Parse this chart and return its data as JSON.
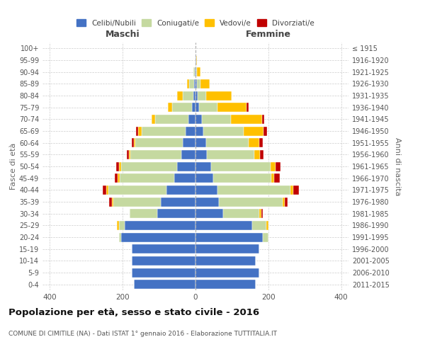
{
  "age_groups": [
    "0-4",
    "5-9",
    "10-14",
    "15-19",
    "20-24",
    "25-29",
    "30-34",
    "35-39",
    "40-44",
    "45-49",
    "50-54",
    "55-59",
    "60-64",
    "65-69",
    "70-74",
    "75-79",
    "80-84",
    "85-89",
    "90-94",
    "95-99",
    "100+"
  ],
  "birth_years": [
    "2011-2015",
    "2006-2010",
    "2001-2005",
    "1996-2000",
    "1991-1995",
    "1986-1990",
    "1981-1985",
    "1976-1980",
    "1971-1975",
    "1966-1970",
    "1961-1965",
    "1956-1960",
    "1951-1955",
    "1946-1950",
    "1941-1945",
    "1936-1940",
    "1931-1935",
    "1926-1930",
    "1921-1925",
    "1916-1920",
    "≤ 1915"
  ],
  "male": {
    "celibi": [
      170,
      175,
      175,
      175,
      205,
      195,
      105,
      95,
      80,
      58,
      50,
      38,
      35,
      28,
      20,
      10,
      5,
      3,
      2,
      0,
      0
    ],
    "coniugati": [
      0,
      0,
      0,
      0,
      5,
      15,
      75,
      130,
      160,
      150,
      155,
      140,
      130,
      120,
      90,
      55,
      30,
      15,
      4,
      0,
      0
    ],
    "vedovi": [
      0,
      0,
      0,
      0,
      0,
      5,
      0,
      5,
      5,
      5,
      5,
      5,
      5,
      10,
      10,
      10,
      15,
      5,
      0,
      0,
      0
    ],
    "divorziati": [
      0,
      0,
      0,
      0,
      0,
      0,
      0,
      8,
      10,
      8,
      8,
      5,
      5,
      5,
      0,
      0,
      0,
      0,
      0,
      0,
      0
    ]
  },
  "female": {
    "nubili": [
      165,
      175,
      165,
      175,
      185,
      155,
      75,
      65,
      60,
      48,
      42,
      32,
      30,
      22,
      18,
      10,
      5,
      3,
      2,
      1,
      0
    ],
    "coniugate": [
      0,
      0,
      0,
      0,
      15,
      40,
      100,
      175,
      200,
      160,
      165,
      130,
      115,
      110,
      80,
      50,
      25,
      10,
      2,
      0,
      0
    ],
    "vedove": [
      0,
      0,
      0,
      0,
      0,
      5,
      5,
      5,
      8,
      8,
      12,
      15,
      30,
      55,
      85,
      80,
      70,
      25,
      10,
      2,
      0
    ],
    "divorziate": [
      0,
      0,
      0,
      0,
      0,
      0,
      5,
      8,
      15,
      15,
      15,
      10,
      10,
      10,
      5,
      5,
      0,
      0,
      0,
      0,
      0
    ]
  },
  "colors": {
    "celibi": "#4472c4",
    "coniugati": "#c5d9a0",
    "vedovi": "#ffc000",
    "divorziati": "#c00000"
  },
  "title": "Popolazione per età, sesso e stato civile - 2016",
  "subtitle": "COMUNE DI CIMITILE (NA) - Dati ISTAT 1° gennaio 2016 - Elaborazione TUTTITALIA.IT",
  "ylabel_left": "Fasce di età",
  "ylabel_right": "Anni di nascita",
  "xlabel_maschi": "Maschi",
  "xlabel_femmine": "Femmine",
  "xlim": 420,
  "legend_labels": [
    "Celibi/Nubili",
    "Coniugati/e",
    "Vedovi/e",
    "Divorziati/e"
  ]
}
